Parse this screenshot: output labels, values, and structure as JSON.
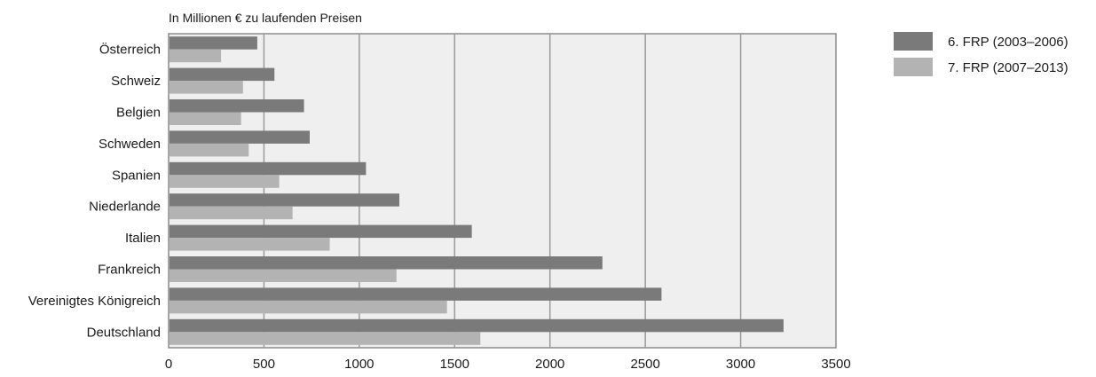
{
  "chart_data": {
    "type": "bar",
    "orientation": "horizontal",
    "subtitle": "In Millionen €  zu laufenden Preisen",
    "categories": [
      "Österreich",
      "Schweiz",
      "Belgien",
      "Schweden",
      "Spanien",
      "Niederlande",
      "Italien",
      "Frankreich",
      "Vereinigtes Königreich",
      "Deutschland"
    ],
    "series": [
      {
        "name": "6. FRP (2003–2006)",
        "color": "#7a7a7a",
        "values": [
          465,
          555,
          710,
          740,
          1035,
          1210,
          1590,
          2275,
          2585,
          3225
        ]
      },
      {
        "name": "7. FRP (2007–2013)",
        "color": "#b3b3b3",
        "values": [
          275,
          390,
          380,
          420,
          580,
          650,
          845,
          1195,
          1460,
          1635
        ]
      }
    ],
    "xlim": [
      0,
      3500
    ],
    "xticks": [
      0,
      500,
      1000,
      1500,
      2000,
      2500,
      3000,
      3500
    ],
    "grid": true,
    "plot_background": "#efefef",
    "legend_position": "top-right"
  }
}
